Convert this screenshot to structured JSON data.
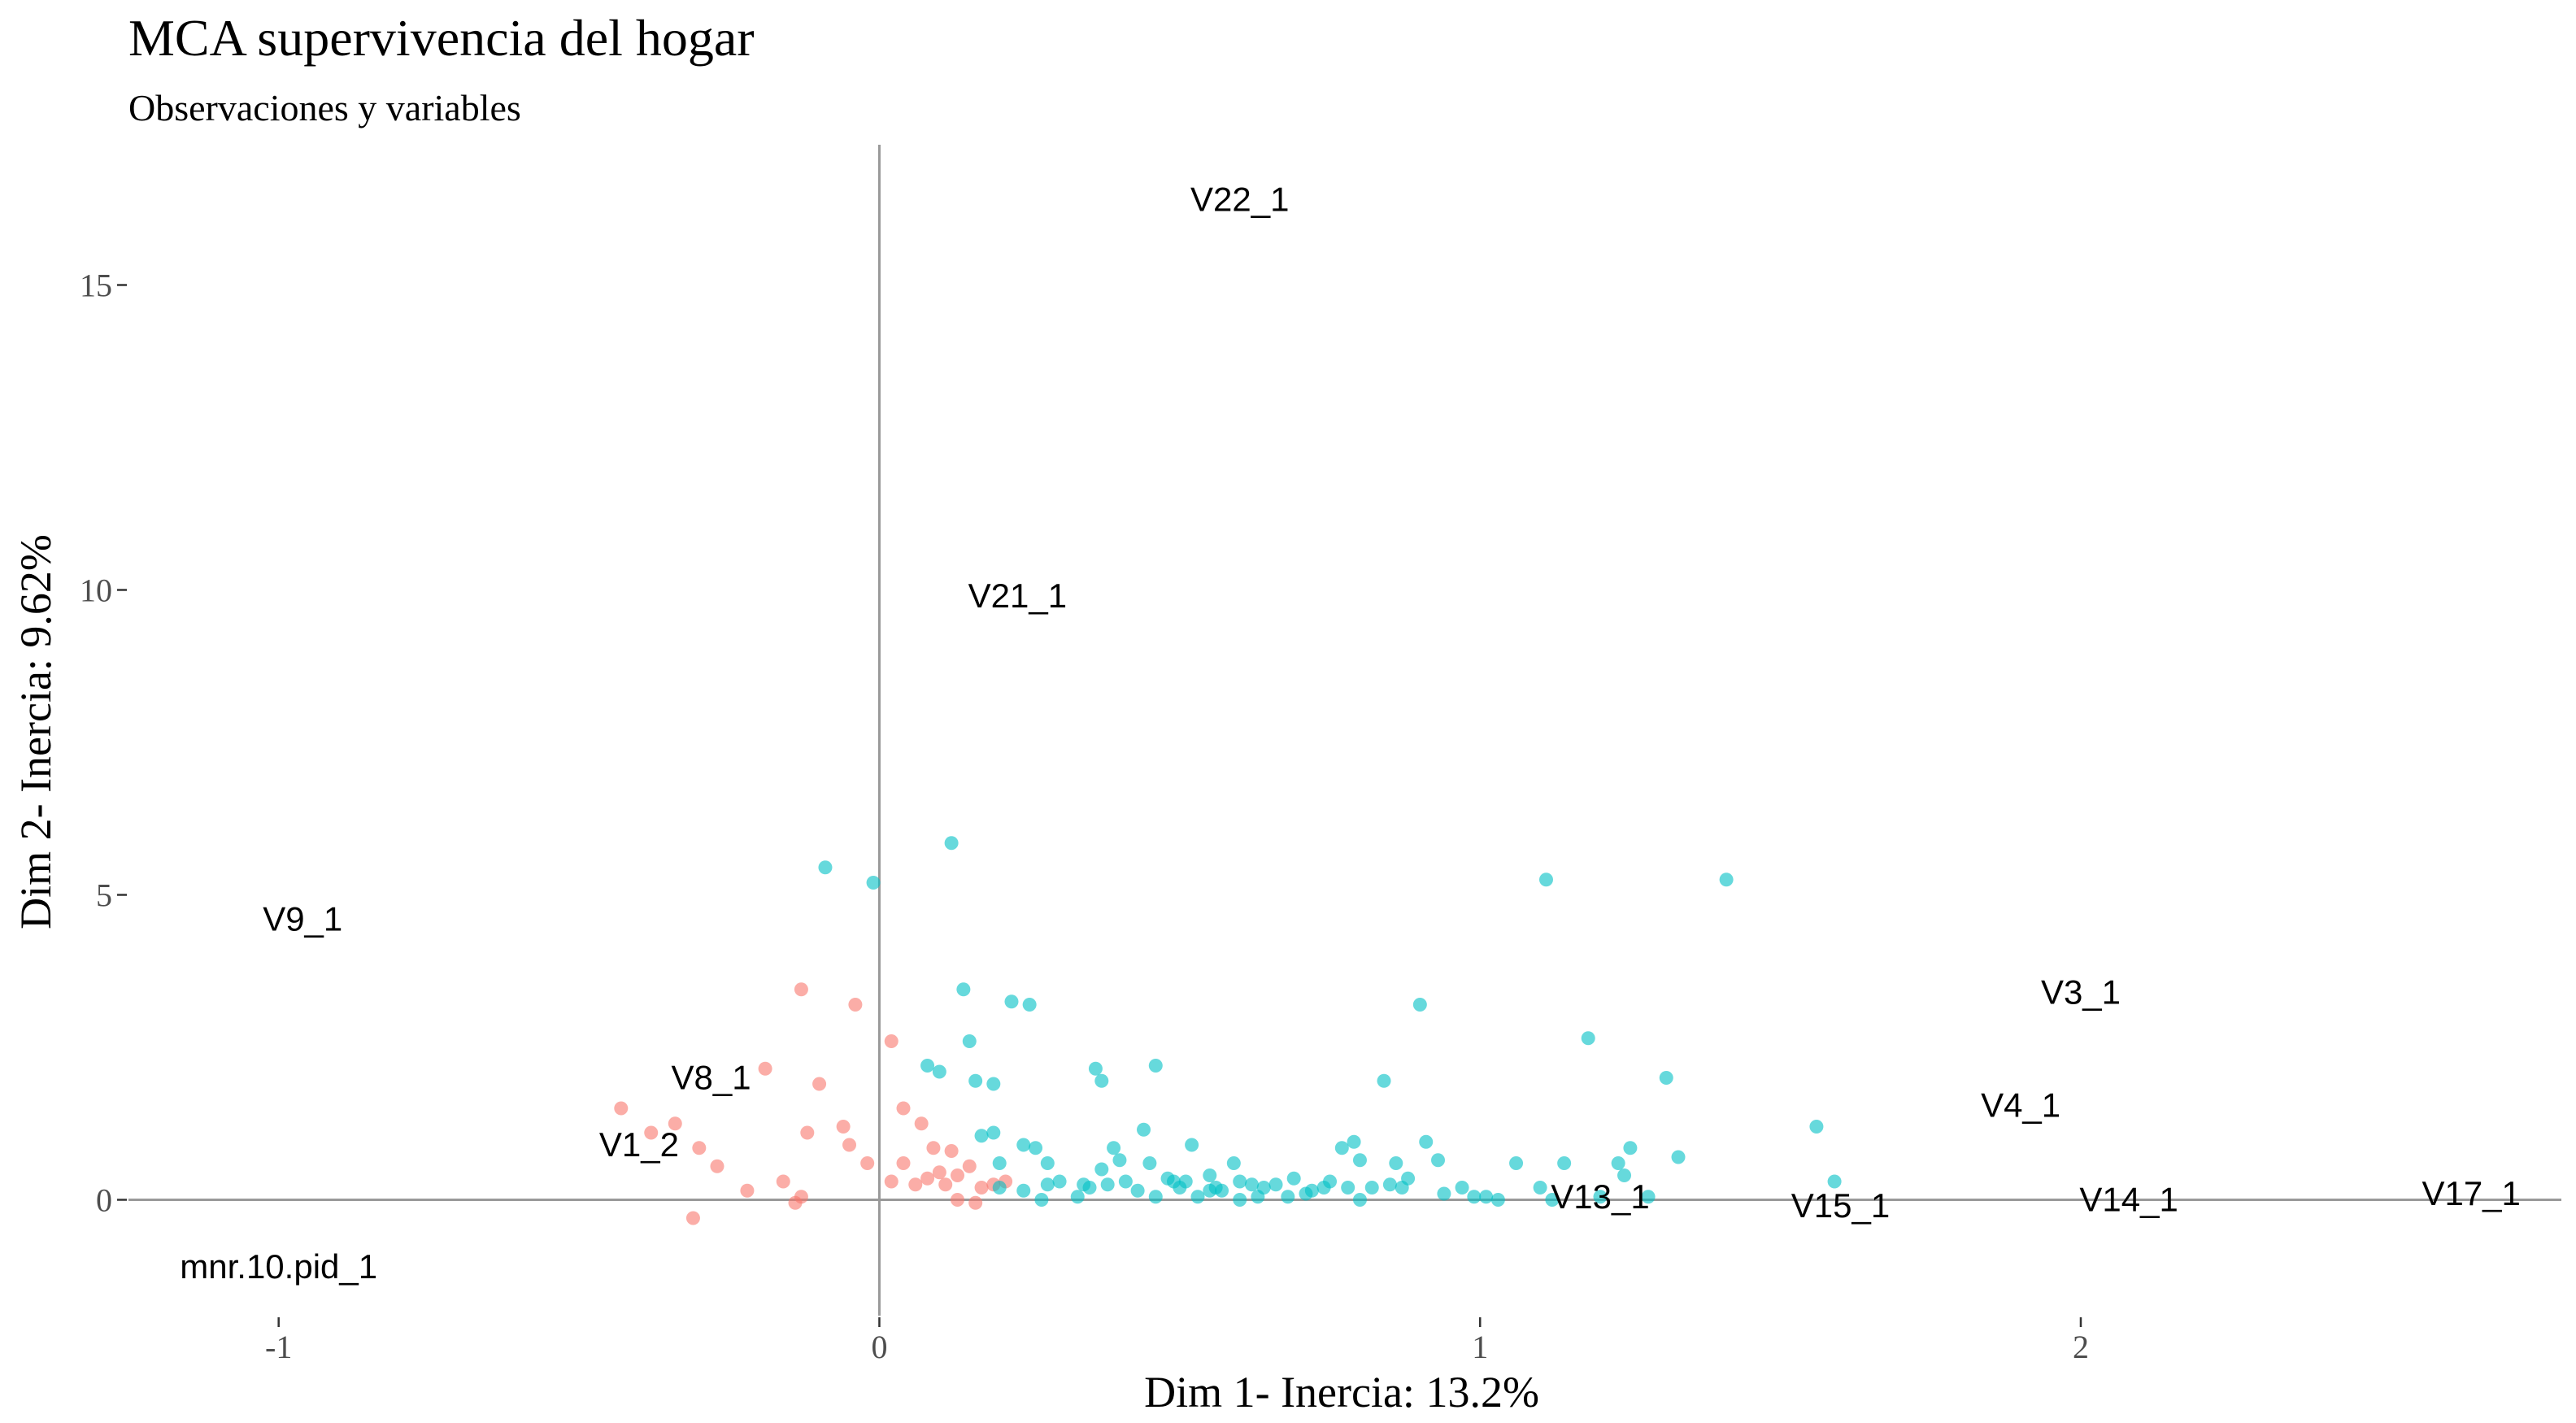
{
  "chart_data": {
    "type": "scatter",
    "title": "MCA supervivencia del hogar",
    "subtitle": "Observaciones y variables",
    "xlabel": "Dim 1- Inercia: 13.2%",
    "ylabel": "Dim 2- Inercia: 9.62%",
    "xlim": [
      -1.25,
      2.8
    ],
    "ylim": [
      -1.9,
      17.3
    ],
    "x_ticks": [
      -1,
      0,
      1,
      2
    ],
    "x_tick_labels": [
      "-1",
      "0",
      "1",
      "2"
    ],
    "y_ticks": [
      0,
      5,
      10,
      15
    ],
    "y_tick_labels": [
      "0",
      "5",
      "10",
      "15"
    ],
    "grid": false,
    "reference_lines": [
      0,
      0
    ],
    "colors": {
      "group_a": "#F8766D",
      "group_b": "#00BFC4"
    },
    "variable_labels": [
      {
        "label": "V22_1",
        "x": 0.6,
        "y": 16.4
      },
      {
        "label": "V21_1",
        "x": 0.23,
        "y": 9.9
      },
      {
        "label": "V9_1",
        "x": -0.96,
        "y": 4.6
      },
      {
        "label": "V3_1",
        "x": 2.0,
        "y": 3.4
      },
      {
        "label": "V4_1",
        "x": 1.9,
        "y": 1.55
      },
      {
        "label": "V8_1",
        "x": -0.28,
        "y": 2.0
      },
      {
        "label": "V1_2",
        "x": -0.4,
        "y": 0.9
      },
      {
        "label": "V13_1",
        "x": 1.2,
        "y": 0.05
      },
      {
        "label": "V15_1",
        "x": 1.6,
        "y": -0.1
      },
      {
        "label": "V14_1",
        "x": 2.08,
        "y": 0.0
      },
      {
        "label": "V17_1",
        "x": 2.65,
        "y": 0.1
      },
      {
        "label": "mnr.10.pid_1",
        "x": -1.0,
        "y": -1.1
      }
    ],
    "series": [
      {
        "color": "#F8766D",
        "points": [
          [
            -0.13,
            3.45
          ],
          [
            -0.04,
            3.2
          ],
          [
            -0.19,
            2.15
          ],
          [
            -0.1,
            1.9
          ],
          [
            0.02,
            2.6
          ],
          [
            0.04,
            1.5
          ],
          [
            -0.12,
            1.1
          ],
          [
            -0.06,
            1.2
          ],
          [
            -0.43,
            1.5
          ],
          [
            -0.34,
            1.25
          ],
          [
            -0.38,
            1.1
          ],
          [
            -0.3,
            0.85
          ],
          [
            -0.27,
            0.55
          ],
          [
            -0.22,
            0.15
          ],
          [
            -0.16,
            0.3
          ],
          [
            -0.13,
            0.05
          ],
          [
            -0.14,
            -0.05
          ],
          [
            -0.31,
            -0.3
          ],
          [
            -0.05,
            0.9
          ],
          [
            -0.02,
            0.6
          ],
          [
            0.07,
            1.25
          ],
          [
            0.09,
            0.85
          ],
          [
            0.12,
            0.8
          ],
          [
            0.1,
            0.45
          ],
          [
            0.08,
            0.35
          ],
          [
            0.06,
            0.25
          ],
          [
            0.11,
            0.25
          ],
          [
            0.13,
            0.4
          ],
          [
            0.15,
            0.55
          ],
          [
            0.17,
            0.2
          ],
          [
            0.19,
            0.25
          ],
          [
            0.21,
            0.3
          ],
          [
            0.13,
            0.0
          ],
          [
            0.16,
            -0.05
          ],
          [
            0.04,
            0.6
          ],
          [
            0.02,
            0.3
          ]
        ]
      },
      {
        "color": "#00BFC4",
        "points": [
          [
            -0.09,
            5.45
          ],
          [
            -0.01,
            5.2
          ],
          [
            0.12,
            5.85
          ],
          [
            0.14,
            3.45
          ],
          [
            0.22,
            3.25
          ],
          [
            0.25,
            3.2
          ],
          [
            0.15,
            2.6
          ],
          [
            0.08,
            2.2
          ],
          [
            0.1,
            2.1
          ],
          [
            0.16,
            1.95
          ],
          [
            0.19,
            1.9
          ],
          [
            0.36,
            2.15
          ],
          [
            0.37,
            1.95
          ],
          [
            0.46,
            2.2
          ],
          [
            0.17,
            1.05
          ],
          [
            0.19,
            1.1
          ],
          [
            0.2,
            0.6
          ],
          [
            0.26,
            0.85
          ],
          [
            0.28,
            0.6
          ],
          [
            0.37,
            0.5
          ],
          [
            0.39,
            0.85
          ],
          [
            0.4,
            0.65
          ],
          [
            0.44,
            1.15
          ],
          [
            0.52,
            0.9
          ],
          [
            0.45,
            0.6
          ],
          [
            0.55,
            0.4
          ],
          [
            0.59,
            0.6
          ],
          [
            0.48,
            0.35
          ],
          [
            0.6,
            0.3
          ],
          [
            0.64,
            0.2
          ],
          [
            0.66,
            0.25
          ],
          [
            0.69,
            0.35
          ],
          [
            0.74,
            0.2
          ],
          [
            0.75,
            0.3
          ],
          [
            0.77,
            0.85
          ],
          [
            0.79,
            0.95
          ],
          [
            0.8,
            0.65
          ],
          [
            0.84,
            1.95
          ],
          [
            0.86,
            0.6
          ],
          [
            0.88,
            0.35
          ],
          [
            0.91,
            0.95
          ],
          [
            0.93,
            0.65
          ],
          [
            0.9,
            3.2
          ],
          [
            0.97,
            0.2
          ],
          [
            1.01,
            0.05
          ],
          [
            1.03,
            0.0
          ],
          [
            1.06,
            0.6
          ],
          [
            1.11,
            5.25
          ],
          [
            1.14,
            0.6
          ],
          [
            1.18,
            2.65
          ],
          [
            1.23,
            0.6
          ],
          [
            1.25,
            0.85
          ],
          [
            1.31,
            2.0
          ],
          [
            1.33,
            0.7
          ],
          [
            1.41,
            5.25
          ],
          [
            1.56,
            1.2
          ],
          [
            1.59,
            0.3
          ],
          [
            0.2,
            0.2
          ],
          [
            0.24,
            0.15
          ],
          [
            0.27,
            0.0
          ],
          [
            0.3,
            0.3
          ],
          [
            0.33,
            0.05
          ],
          [
            0.35,
            0.2
          ],
          [
            0.41,
            0.3
          ],
          [
            0.43,
            0.15
          ],
          [
            0.46,
            0.05
          ],
          [
            0.5,
            0.2
          ],
          [
            0.53,
            0.05
          ],
          [
            0.57,
            0.15
          ],
          [
            0.6,
            0.0
          ],
          [
            0.63,
            0.05
          ],
          [
            0.68,
            0.05
          ],
          [
            0.72,
            0.15
          ],
          [
            0.8,
            0.0
          ],
          [
            0.82,
            0.2
          ],
          [
            0.87,
            0.2
          ],
          [
            0.94,
            0.1
          ],
          [
            0.99,
            0.05
          ],
          [
            1.1,
            0.2
          ],
          [
            1.12,
            0.0
          ],
          [
            1.2,
            0.05
          ],
          [
            1.24,
            0.4
          ],
          [
            1.28,
            0.05
          ],
          [
            0.49,
            0.3
          ],
          [
            0.56,
            0.2
          ],
          [
            0.71,
            0.1
          ],
          [
            0.78,
            0.2
          ],
          [
            0.38,
            0.25
          ],
          [
            0.55,
            0.15
          ],
          [
            0.62,
            0.25
          ],
          [
            0.85,
            0.25
          ],
          [
            0.24,
            0.9
          ],
          [
            0.34,
            0.25
          ],
          [
            0.28,
            0.25
          ],
          [
            0.51,
            0.3
          ]
        ]
      }
    ]
  }
}
